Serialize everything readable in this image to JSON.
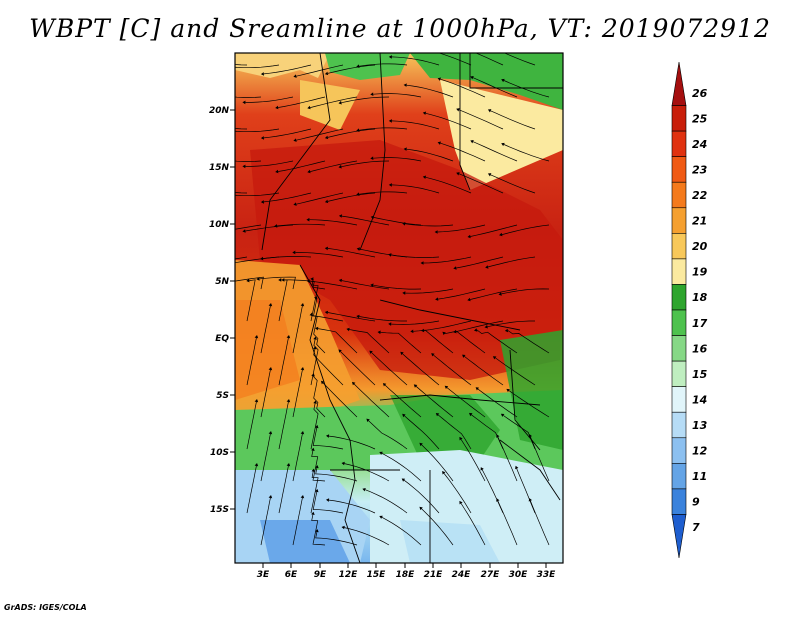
{
  "title": "WBPT [C] and Sreamline at 1000hPa, VT: 2019072912",
  "footer": "GrADS: IGES/COLA",
  "lat_labels": [
    "20N",
    "15N",
    "10N",
    "5N",
    "EQ",
    "5S",
    "10S",
    "15S"
  ],
  "lon_labels": [
    "3E",
    "6E",
    "9E",
    "12E",
    "15E",
    "18E",
    "21E",
    "24E",
    "27E",
    "30E",
    "33E"
  ],
  "colorbar": {
    "labels": [
      "26",
      "25",
      "24",
      "23",
      "22",
      "21",
      "20",
      "19",
      "18",
      "17",
      "16",
      "15",
      "14",
      "13",
      "12",
      "11",
      "9",
      "7"
    ],
    "colors": [
      "#a50f0f",
      "#c81e0a",
      "#e03210",
      "#f05a14",
      "#f47a1c",
      "#f5a030",
      "#f8c85a",
      "#fbeaa0",
      "#2ea52e",
      "#4ec24e",
      "#86d886",
      "#bfeec0",
      "#e1f5fa",
      "#b6dcf6",
      "#8cc0f0",
      "#64a4e6",
      "#3a82dc",
      "#1e5ecf"
    ]
  }
}
